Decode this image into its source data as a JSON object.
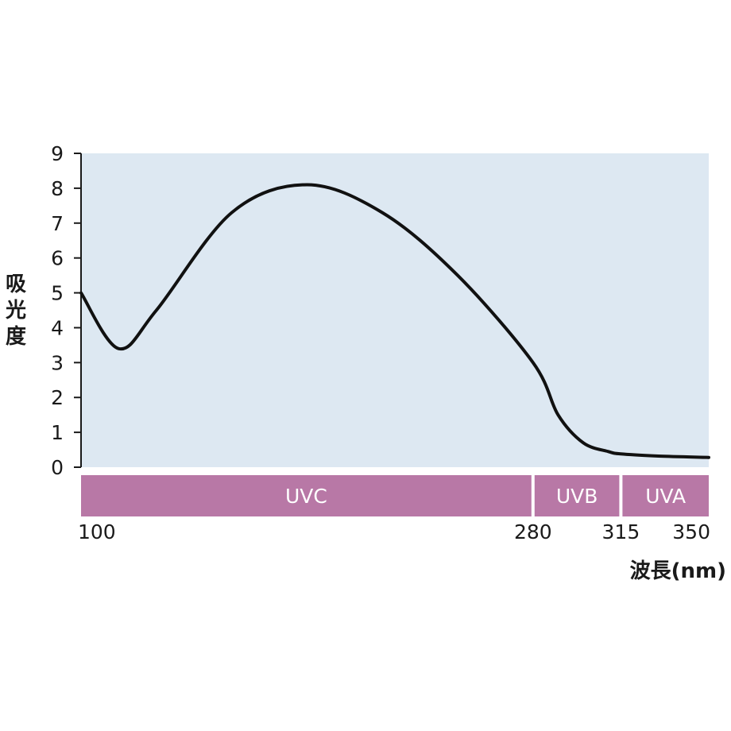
{
  "chart_data": {
    "type": "line",
    "ylabel": "吸光度",
    "xlabel": "波長(nm)",
    "ylim": [
      0,
      9
    ],
    "y_ticks": [
      "0",
      "1",
      "2",
      "3",
      "4",
      "5",
      "6",
      "7",
      "8",
      "9"
    ],
    "x_ticks": [
      {
        "value": 100,
        "label": "100"
      },
      {
        "value": 280,
        "label": "280"
      },
      {
        "value": 315,
        "label": "315"
      },
      {
        "value": 350,
        "label": "350"
      }
    ],
    "bands": [
      {
        "label": "UVC",
        "from": 100,
        "to": 280
      },
      {
        "label": "UVB",
        "from": 280,
        "to": 315
      },
      {
        "label": "UVA",
        "from": 315,
        "to": 350
      }
    ],
    "series": [
      {
        "points": [
          [
            100,
            5.0
          ],
          [
            115,
            3.4
          ],
          [
            130,
            4.5
          ],
          [
            160,
            7.3
          ],
          [
            190,
            8.1
          ],
          [
            220,
            7.3
          ],
          [
            250,
            5.5
          ],
          [
            280,
            3.0
          ],
          [
            290,
            1.5
          ],
          [
            300,
            0.7
          ],
          [
            310,
            0.45
          ],
          [
            315,
            0.38
          ],
          [
            330,
            0.32
          ],
          [
            350,
            0.28
          ]
        ]
      }
    ],
    "colors": {
      "plot_bg": "#dde8f2",
      "band": "#b878a6",
      "line": "#111111",
      "axis": "#1a1a1a"
    },
    "grid": false
  }
}
